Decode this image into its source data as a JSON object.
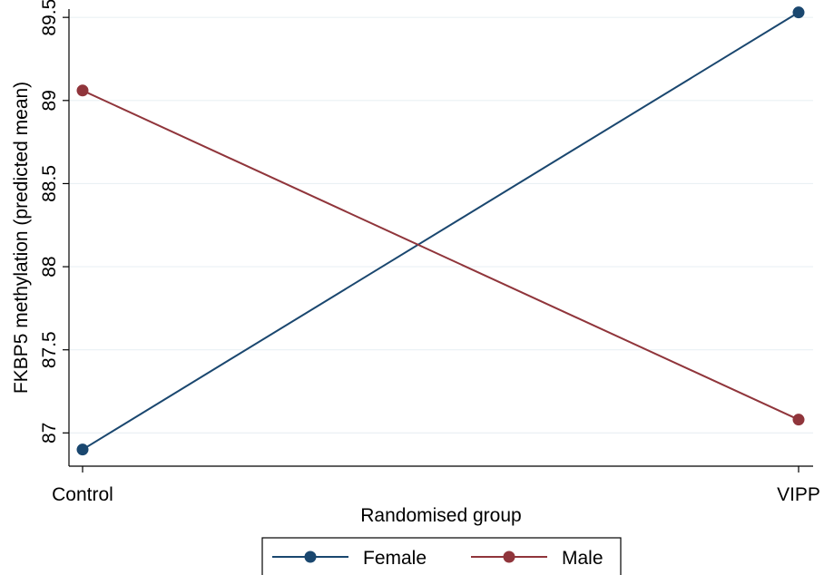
{
  "chart_data": {
    "type": "line",
    "title": "",
    "xlabel": "Randomised group",
    "ylabel": "FKBP5 methylation (predicted mean)",
    "categories": [
      "Control",
      "VIPP"
    ],
    "ylim": [
      86.8,
      89.55
    ],
    "yticks": [
      87,
      87.5,
      88,
      88.5,
      89,
      89.5
    ],
    "ytick_labels": [
      "87",
      "87.5",
      "88",
      "88.5",
      "89",
      "89.5"
    ],
    "grid": true,
    "legend_position": "bottom",
    "series": [
      {
        "name": "Female",
        "color": "#1a476f",
        "values": [
          86.9,
          89.53
        ]
      },
      {
        "name": "Male",
        "color": "#90353b",
        "values": [
          89.06,
          87.08
        ]
      }
    ]
  }
}
